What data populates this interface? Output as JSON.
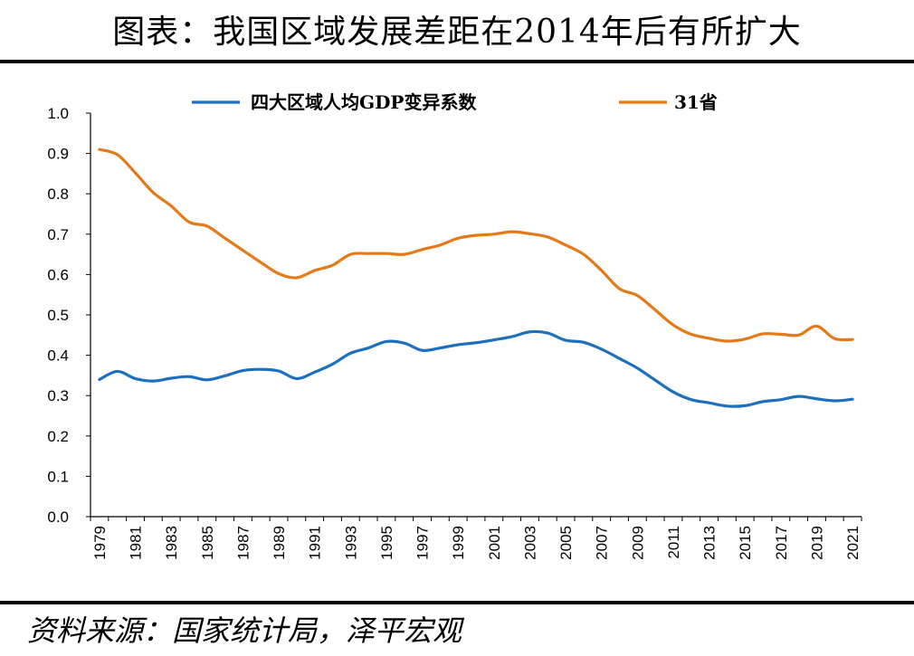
{
  "title": "图表：我国区域发展差距在2014年后有所扩大",
  "source": "资料来源：国家统计局，泽平宏观",
  "chart_data": {
    "type": "line",
    "title": "图表：我国区域发展差距在2014年后有所扩大",
    "xlabel": "",
    "ylabel": "",
    "ylim": [
      0.0,
      1.0
    ],
    "yticks": [
      "0.0",
      "0.1",
      "0.2",
      "0.3",
      "0.4",
      "0.5",
      "0.6",
      "0.7",
      "0.8",
      "0.9",
      "1.0"
    ],
    "xtick_labels": [
      "1979",
      "1981",
      "1983",
      "1985",
      "1987",
      "1989",
      "1991",
      "1993",
      "1995",
      "1997",
      "1999",
      "2001",
      "2003",
      "2005",
      "2007",
      "2009",
      "2011",
      "2013",
      "2015",
      "2017",
      "2019",
      "2021"
    ],
    "x": [
      1979,
      1980,
      1981,
      1982,
      1983,
      1984,
      1985,
      1986,
      1987,
      1988,
      1989,
      1990,
      1991,
      1992,
      1993,
      1994,
      1995,
      1996,
      1997,
      1998,
      1999,
      2000,
      2001,
      2002,
      2003,
      2004,
      2005,
      2006,
      2007,
      2008,
      2009,
      2010,
      2011,
      2012,
      2013,
      2014,
      2015,
      2016,
      2017,
      2018,
      2019,
      2020,
      2021
    ],
    "grid": false,
    "legend_position": "top",
    "series": [
      {
        "name": "四大区域人均GDP变异系数",
        "color": "#1f6fbf",
        "values": [
          0.34,
          0.36,
          0.342,
          0.336,
          0.343,
          0.347,
          0.339,
          0.349,
          0.362,
          0.365,
          0.361,
          0.342,
          0.358,
          0.378,
          0.405,
          0.418,
          0.434,
          0.43,
          0.412,
          0.418,
          0.426,
          0.431,
          0.438,
          0.446,
          0.458,
          0.455,
          0.437,
          0.432,
          0.415,
          0.392,
          0.368,
          0.338,
          0.309,
          0.29,
          0.282,
          0.274,
          0.275,
          0.285,
          0.29,
          0.298,
          0.292,
          0.287,
          0.291
        ]
      },
      {
        "name": "31省",
        "color": "#e37a1a",
        "values": [
          0.91,
          0.897,
          0.852,
          0.803,
          0.77,
          0.73,
          0.72,
          0.69,
          0.66,
          0.63,
          0.602,
          0.592,
          0.61,
          0.623,
          0.65,
          0.652,
          0.652,
          0.65,
          0.662,
          0.673,
          0.69,
          0.697,
          0.7,
          0.706,
          0.701,
          0.693,
          0.673,
          0.65,
          0.61,
          0.565,
          0.548,
          0.512,
          0.475,
          0.452,
          0.442,
          0.435,
          0.44,
          0.453,
          0.452,
          0.45,
          0.472,
          0.441,
          0.439
        ]
      }
    ]
  }
}
